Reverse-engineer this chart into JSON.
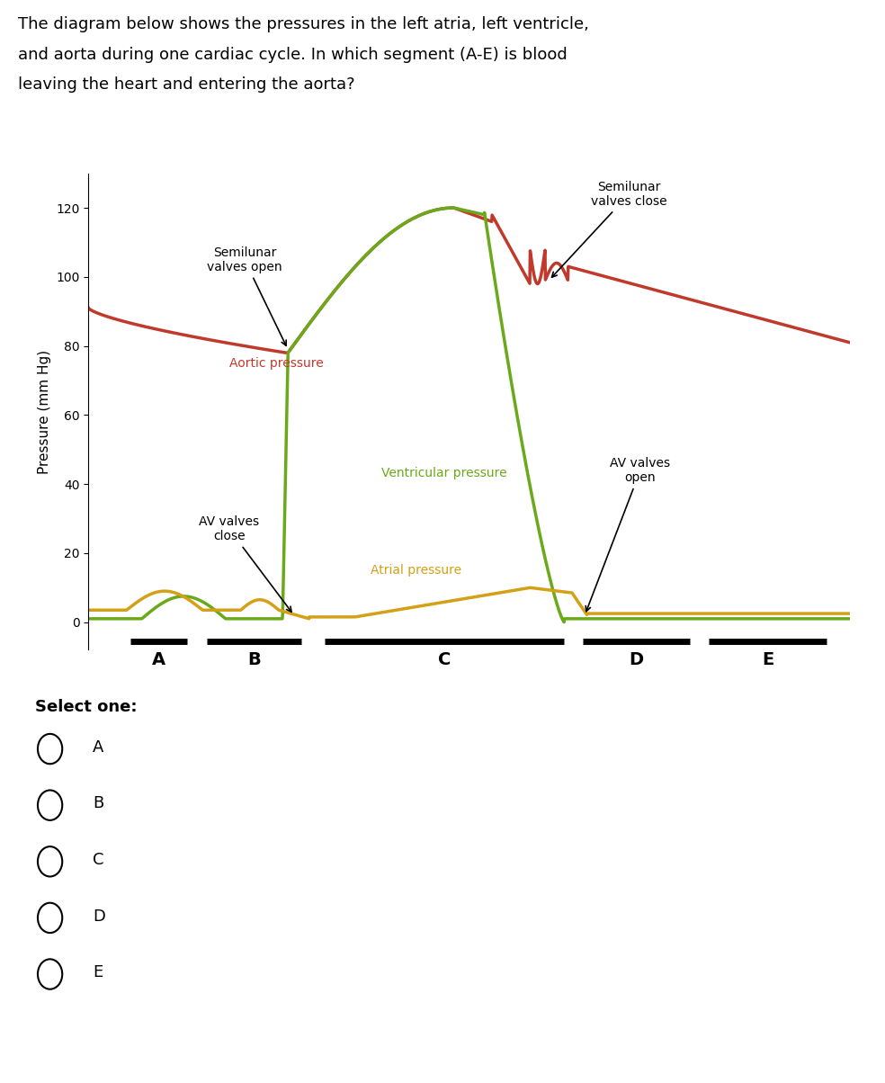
{
  "title_line1": "The diagram below shows the pressures in the left atria, left ventricle,",
  "title_line2": "and aorta during one cardiac cycle. In which segment (A-E) is blood",
  "title_line3": "leaving the heart and entering the aorta?",
  "ylabel": "Pressure (mm Hg)",
  "ylim": [
    -8,
    130
  ],
  "xlim": [
    0,
    10
  ],
  "yticks": [
    0,
    20,
    40,
    60,
    80,
    100,
    120
  ],
  "aortic_color": "#c0392b",
  "ventricular_color": "#6aaa1a",
  "atrial_color": "#d4a017",
  "background_color": "#ffffff",
  "segment_labels": [
    "A",
    "B",
    "C",
    "D",
    "E"
  ],
  "select_one_text": "Select one:",
  "options": [
    "A",
    "B",
    "C",
    "D",
    "E"
  ],
  "ann_semi_open_text": "Semilunar\nvalves open",
  "ann_semi_close_text": "Semilunar\nvalves close",
  "ann_aortic_text": "Aortic pressure",
  "ann_ventricular_text": "Ventricular pressure",
  "ann_atrial_text": "Atrial pressure",
  "ann_av_close_text": "AV valves\nclose",
  "ann_av_open_text": "AV valves\nopen"
}
